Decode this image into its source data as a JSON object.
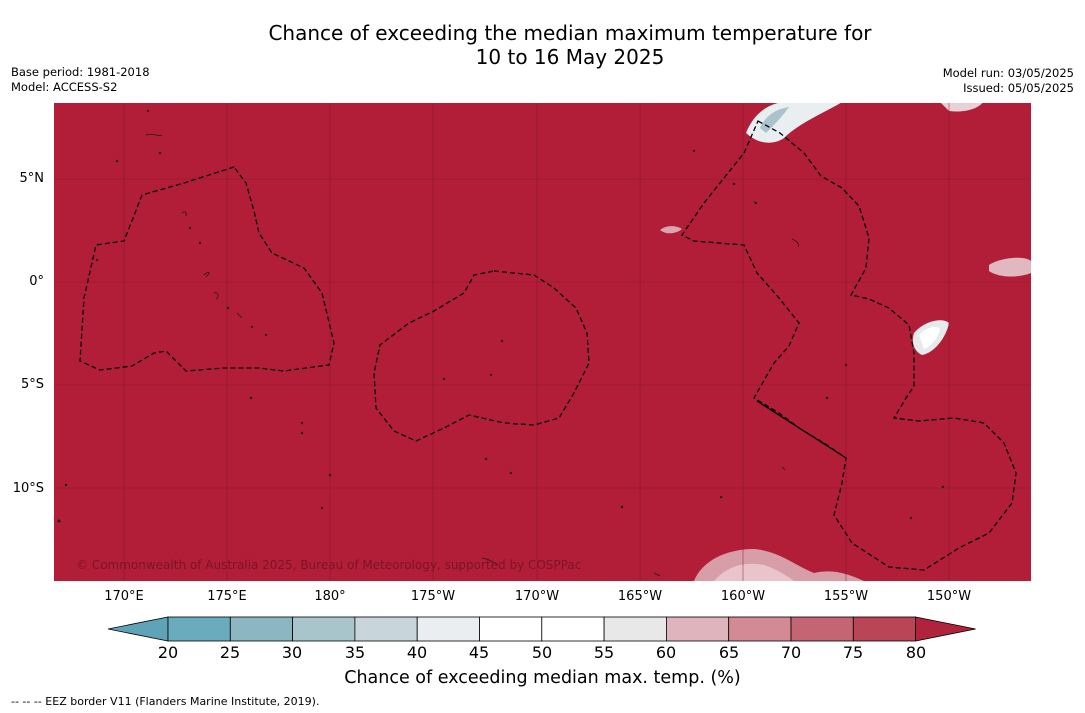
{
  "title_line1": "Chance of exceeding the median maximum temperature for",
  "title_line2": "10 to 16 May 2025",
  "base_period": "Base period: 1981-2018",
  "model": "Model: ACCESS-S2",
  "model_run": "Model run: 03/05/2025",
  "issued": "Issued: 05/05/2025",
  "copyright": "© Commonwealth of Australia 2025, Bureau of Meteorology, supported by COSPPac",
  "lat_labels": [
    "5°N",
    "0°",
    "5°S",
    "10°S"
  ],
  "lon_labels": [
    "170°E",
    "175°E",
    "180°",
    "175°W",
    "170°W",
    "165°W",
    "160°W",
    "155°W",
    "150°W"
  ],
  "colorbar": {
    "ticks": [
      "20",
      "25",
      "30",
      "35",
      "40",
      "45",
      "50",
      "55",
      "60",
      "65",
      "70",
      "75",
      "80"
    ],
    "colors": [
      "#5fa4b6",
      "#6aacbd",
      "#8bb6c2",
      "#a8c5cb",
      "#c8d6db",
      "#eaeef1",
      "#ffffff",
      "#ffffff",
      "#e8e8e8",
      "#dfb4bc",
      "#d38a95",
      "#c56472",
      "#b94556",
      "#b0233c"
    ],
    "label": "Chance of exceeding median max. temp. (%)"
  },
  "footer": "--  --  -- EEZ border V11 (Flanders Marine Institute, 2019).",
  "colors": {
    "dominant": "#b21e38",
    "gridline": "#7a1426"
  }
}
